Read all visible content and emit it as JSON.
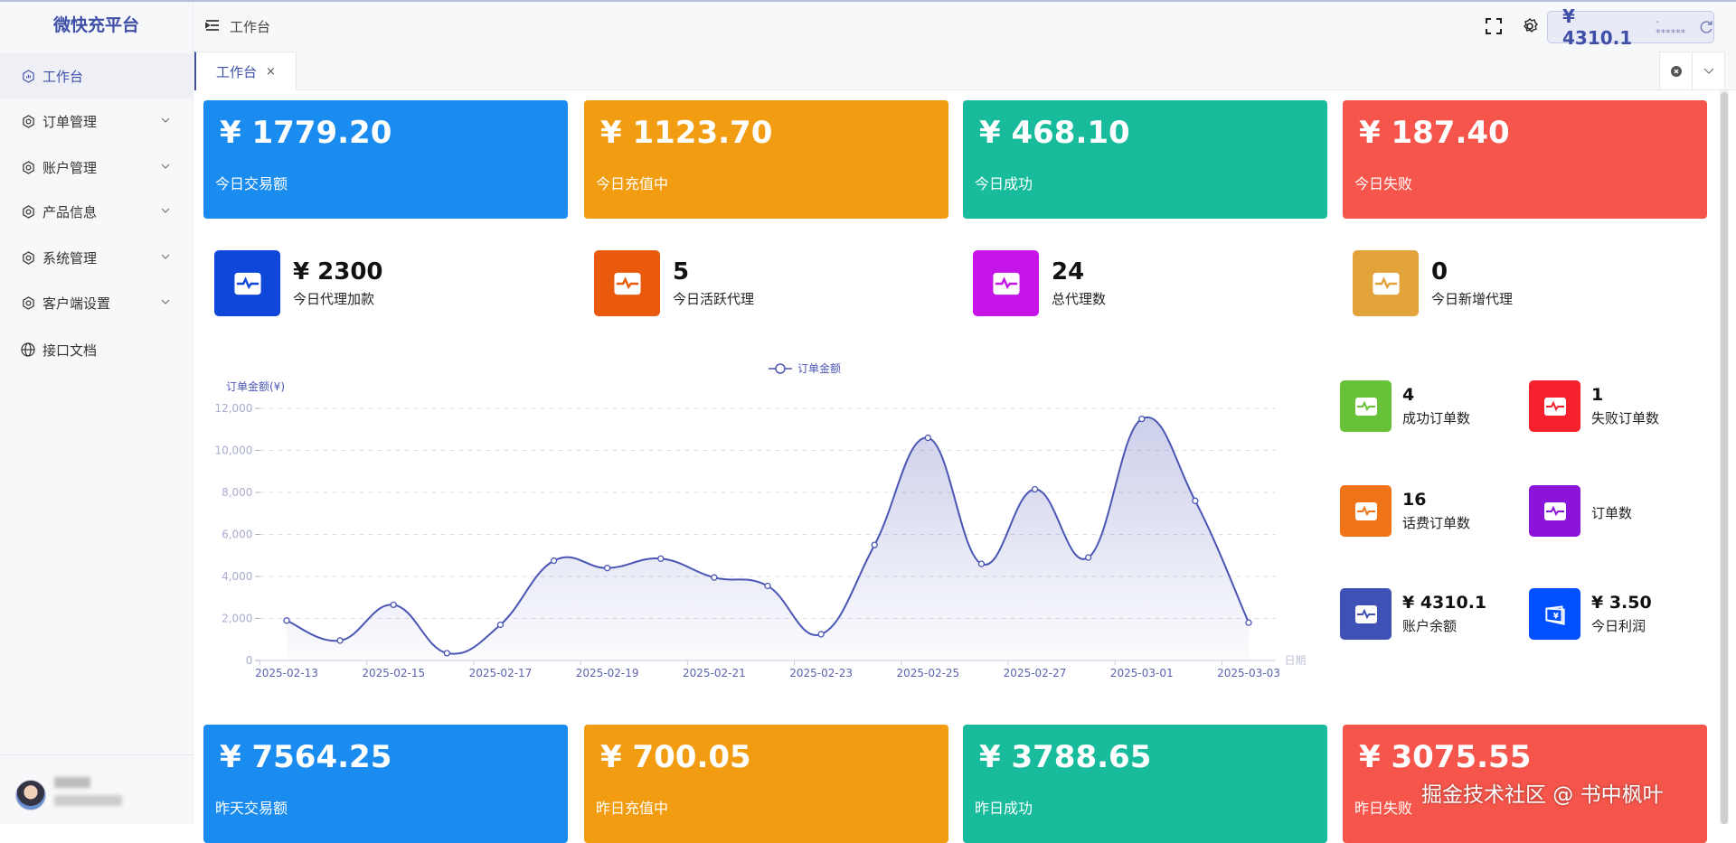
{
  "app": {
    "title": "微快充平台"
  },
  "header": {
    "breadcrumb": "工作台",
    "balance": "¥ 4310.1",
    "balance_mask": "- ******"
  },
  "sidebar": {
    "items": [
      {
        "label": "工作台",
        "icon": "dashboard-icon",
        "active": true
      },
      {
        "label": "订单管理",
        "icon": "hexagon-icon",
        "expandable": true
      },
      {
        "label": "账户管理",
        "icon": "hexagon-icon",
        "expandable": true
      },
      {
        "label": "产品信息",
        "icon": "hexagon-icon",
        "expandable": true
      },
      {
        "label": "系统管理",
        "icon": "hexagon-icon",
        "expandable": true
      },
      {
        "label": "客户端设置",
        "icon": "hexagon-icon",
        "expandable": true
      },
      {
        "label": "接口文档",
        "icon": "globe-icon"
      }
    ]
  },
  "tabs": [
    {
      "label": "工作台",
      "close": "×"
    }
  ],
  "today_cards": [
    {
      "value": "¥ 1779.20",
      "label": "今日交易额",
      "color": "#1a8cf0"
    },
    {
      "value": "¥ 1123.70",
      "label": "今日充值中",
      "color": "#f29c11"
    },
    {
      "value": "¥ 468.10",
      "label": "今日成功",
      "color": "#18bc9c"
    },
    {
      "value": "¥ 187.40",
      "label": "今日失败",
      "color": "#f5554a"
    }
  ],
  "agent_stats": [
    {
      "value": "¥ 2300",
      "label": "今日代理加款",
      "color": "#0e47d9"
    },
    {
      "value": "5",
      "label": "今日活跃代理",
      "color": "#ea5a0c"
    },
    {
      "value": "24",
      "label": "总代理数",
      "color": "#c515e8"
    },
    {
      "value": "0",
      "label": "今日新增代理",
      "color": "#e1a33a"
    }
  ],
  "order_stats": [
    {
      "value": "4",
      "label": "成功订单数",
      "color": "#67c23a",
      "icon": "pulse-icon"
    },
    {
      "value": "1",
      "label": "失败订单数",
      "color": "#f5222d",
      "icon": "pulse-icon"
    },
    {
      "value": "16",
      "label": "话费订单数",
      "color": "#f07318",
      "icon": "pulse-icon"
    },
    {
      "value": "",
      "label": "订单数",
      "color": "#8c14d8",
      "icon": "pulse-icon"
    },
    {
      "value": "¥ 4310.1",
      "label": "账户余额",
      "color": "#3f51b5",
      "icon": "pulse-icon"
    },
    {
      "value": "¥ 3.50",
      "label": "今日利润",
      "color": "#0050ff",
      "icon": "wallet-icon"
    }
  ],
  "yesterday_cards": [
    {
      "value": "¥ 7564.25",
      "label": "昨天交易额",
      "color": "#1a8cf0"
    },
    {
      "value": "¥ 700.05",
      "label": "昨日充值中",
      "color": "#f29c11"
    },
    {
      "value": "¥ 3788.65",
      "label": "昨日成功",
      "color": "#18bc9c"
    },
    {
      "value": "¥ 3075.55",
      "label": "昨日失败",
      "color": "#f5554a"
    }
  ],
  "watermark": "掘金技术社区 @ 书中枫叶",
  "chart_data": {
    "type": "line",
    "smooth": true,
    "area": true,
    "legend": [
      "订单金额"
    ],
    "legend_position": "top-center",
    "ylabel": "订单金额(¥)",
    "xlabel": "日期",
    "ylim": [
      0,
      12000
    ],
    "yticks": [
      "0",
      "2,000",
      "4,000",
      "6,000",
      "8,000",
      "10,000",
      "12,000"
    ],
    "grid": true,
    "color": "#4b56b4",
    "x": [
      "2025-02-13",
      "2025-02-14",
      "2025-02-15",
      "2025-02-16",
      "2025-02-17",
      "2025-02-18",
      "2025-02-19",
      "2025-02-20",
      "2025-02-21",
      "2025-02-22",
      "2025-02-23",
      "2025-02-24",
      "2025-02-25",
      "2025-02-26",
      "2025-02-27",
      "2025-02-28",
      "2025-03-01",
      "2025-03-02",
      "2025-03-03"
    ],
    "xtick_labels": [
      "2025-02-13",
      "2025-02-15",
      "2025-02-17",
      "2025-02-19",
      "2025-02-21",
      "2025-02-23",
      "2025-02-25",
      "2025-02-27",
      "2025-03-01",
      "2025-03-03"
    ],
    "series": [
      {
        "name": "订单金额",
        "values": [
          1900,
          950,
          2650,
          350,
          1700,
          4750,
          4400,
          4850,
          3950,
          3550,
          1250,
          5500,
          10600,
          4600,
          8150,
          4900,
          11500,
          7600,
          1800
        ]
      }
    ]
  }
}
